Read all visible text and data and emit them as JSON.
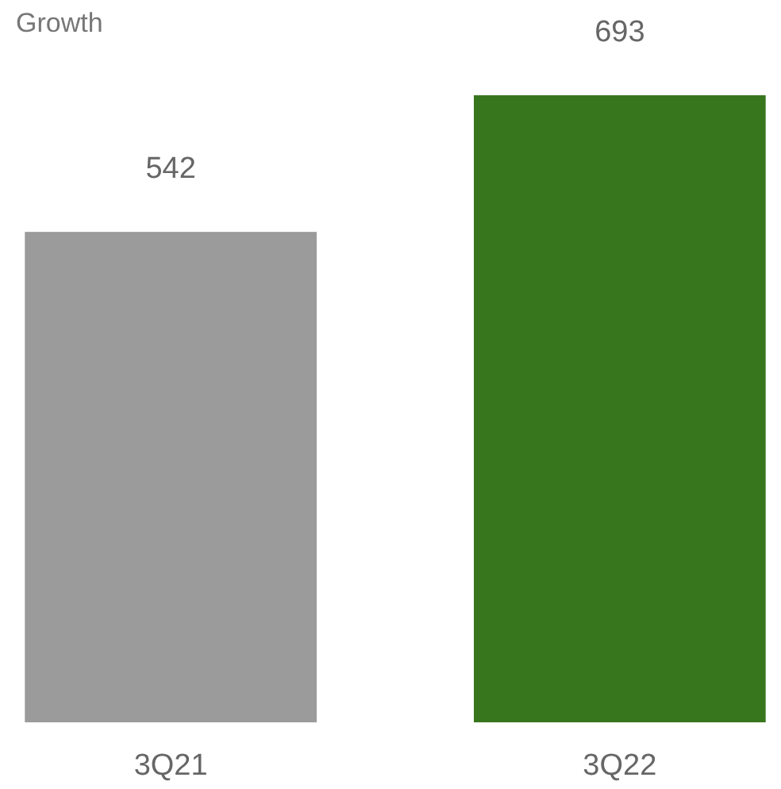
{
  "chart_data": {
    "type": "bar",
    "title": "Growth",
    "categories": [
      "3Q21",
      "3Q22"
    ],
    "values": [
      542,
      693
    ],
    "colors": [
      "#9b9b9b",
      "#38761d"
    ],
    "data_labels": true,
    "tick_labels": "x"
  }
}
